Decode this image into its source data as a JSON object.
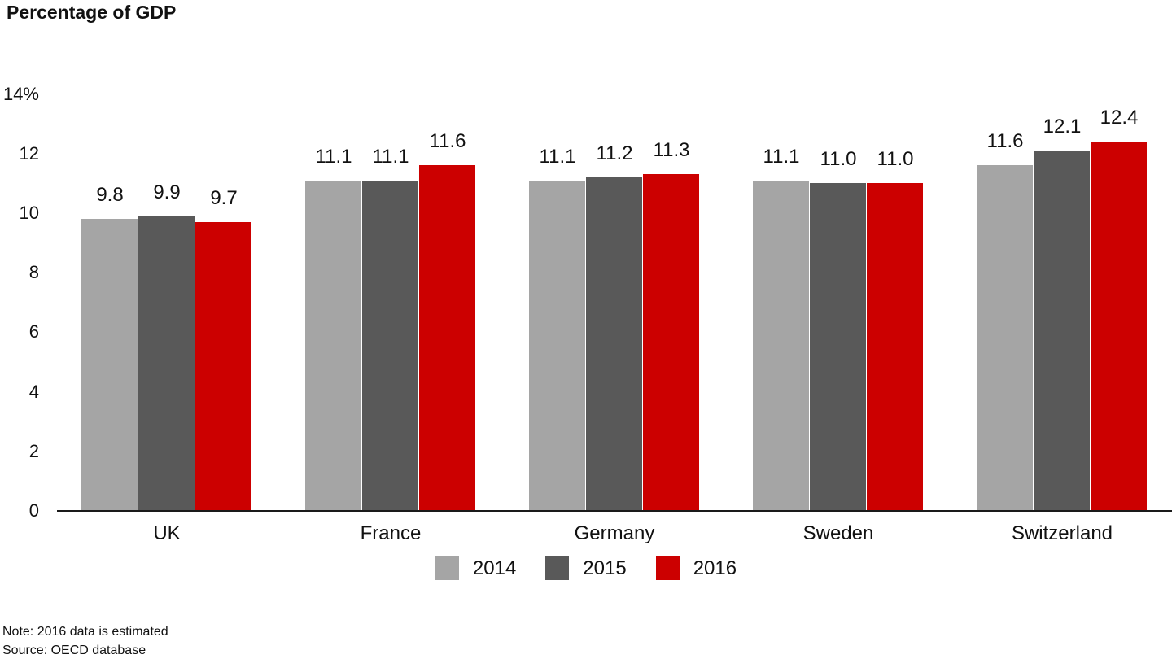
{
  "chart_data": {
    "type": "bar",
    "title": "Percentage of GDP",
    "categories": [
      "UK",
      "France",
      "Germany",
      "Sweden",
      "Switzerland"
    ],
    "series": [
      {
        "name": "2014",
        "color": "#a5a5a5",
        "values": [
          9.8,
          11.1,
          11.1,
          11.1,
          11.6
        ]
      },
      {
        "name": "2015",
        "color": "#595959",
        "values": [
          9.9,
          11.1,
          11.2,
          11.0,
          12.1
        ]
      },
      {
        "name": "2016",
        "color": "#cc0000",
        "values": [
          9.7,
          11.6,
          11.3,
          11.0,
          12.4
        ]
      }
    ],
    "y_axis": {
      "min": 0,
      "max": 14,
      "ticks": [
        {
          "value": 0,
          "label": "0"
        },
        {
          "value": 2,
          "label": "2"
        },
        {
          "value": 4,
          "label": "4"
        },
        {
          "value": 6,
          "label": "6"
        },
        {
          "value": 8,
          "label": "8"
        },
        {
          "value": 10,
          "label": "10"
        },
        {
          "value": 12,
          "label": "12"
        },
        {
          "value": 14,
          "label": "14%"
        }
      ]
    },
    "grid": false,
    "value_labels": true,
    "legend_position": "bottom"
  },
  "footer": {
    "note": "Note: 2016 data is estimated",
    "source": "Source: OECD database"
  }
}
